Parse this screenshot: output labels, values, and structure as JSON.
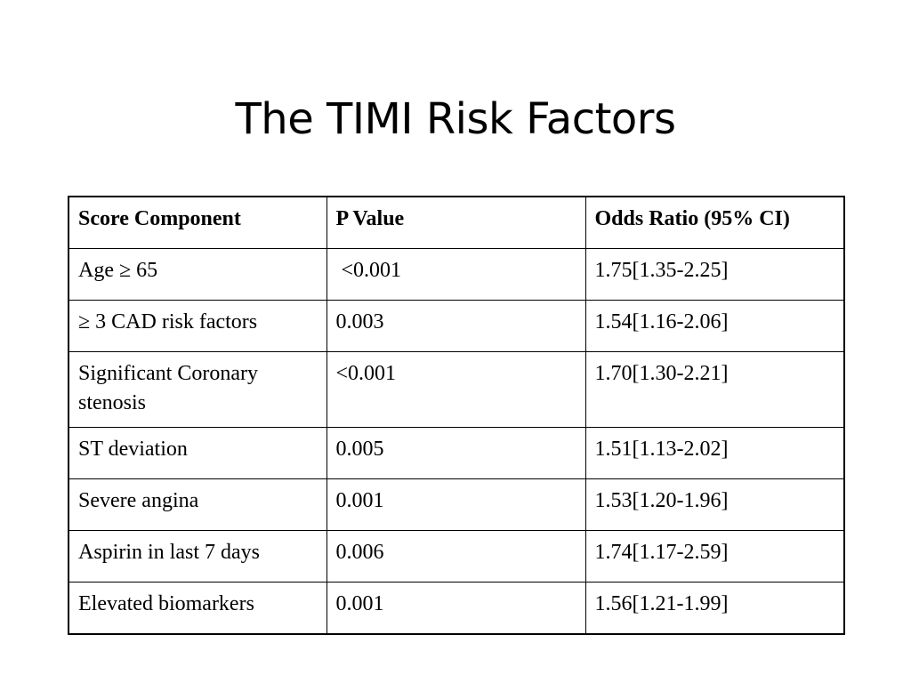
{
  "slide": {
    "title": "The TIMI Risk Factors"
  },
  "table": {
    "headers": [
      "Score Component",
      "P Value",
      "Odds Ratio (95% CI)"
    ],
    "rows": [
      [
        "Age ≥ 65",
        " <0.001",
        "1.75[1.35-2.25]"
      ],
      [
        "≥ 3 CAD risk factors",
        "0.003",
        "1.54[1.16-2.06]"
      ],
      [
        "Significant Coronary stenosis",
        "<0.001",
        "1.70[1.30-2.21]"
      ],
      [
        "ST deviation",
        "0.005",
        "1.51[1.13-2.02]"
      ],
      [
        "Severe angina",
        "0.001",
        "1.53[1.20-1.96]"
      ],
      [
        "Aspirin in last 7 days",
        "0.006",
        "1.74[1.17-2.59]"
      ],
      [
        "Elevated biomarkers",
        "0.001",
        "1.56[1.21-1.99]"
      ]
    ]
  }
}
